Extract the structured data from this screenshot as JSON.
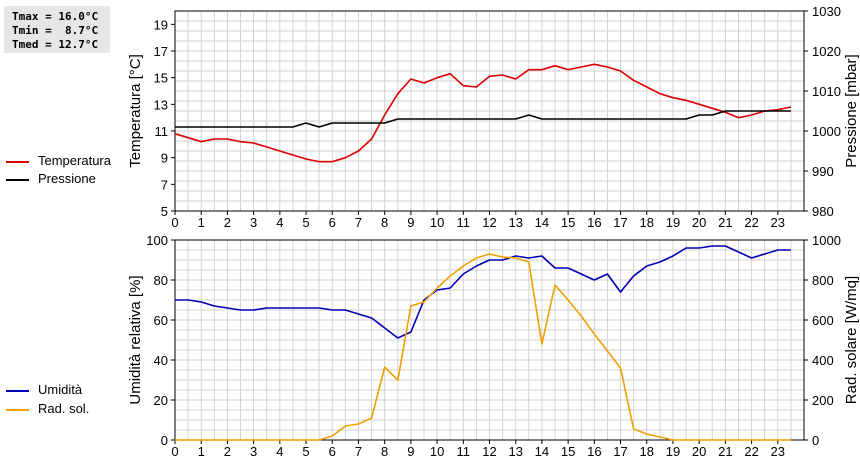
{
  "stats": {
    "tmax": "Tmax = 16.0°C",
    "tmin": "Tmin =  8.7°C",
    "tmed": "Tmed = 12.7°C"
  },
  "legend_top": [
    {
      "label": "Temperatura",
      "color": "#dd0000"
    },
    {
      "label": "Pressione",
      "color": "#000000"
    }
  ],
  "legend_bottom": [
    {
      "label": "Umidità",
      "color": "#0000b4"
    },
    {
      "label": "Rad. sol.",
      "color": "#f0a000"
    }
  ],
  "chart_data": [
    {
      "type": "line",
      "title": "",
      "xlabel": "",
      "xlim": [
        0,
        24
      ],
      "x_ticks": [
        "0",
        "1",
        "2",
        "3",
        "4",
        "5",
        "6",
        "7",
        "8",
        "9",
        "10",
        "11",
        "12",
        "13",
        "14",
        "15",
        "16",
        "17",
        "18",
        "19",
        "20",
        "21",
        "22",
        "23"
      ],
      "ylabel": "Temperatura [°C]",
      "ylim": [
        5,
        20
      ],
      "y_ticks": [
        "5",
        "7",
        "9",
        "11",
        "13",
        "15",
        "17",
        "19"
      ],
      "y2label": "Pressione [mbar]",
      "y2lim": [
        980,
        1030
      ],
      "y2_ticks": [
        "980",
        "990",
        "1000",
        "1010",
        "1020",
        "1030"
      ],
      "grid": true,
      "series": [
        {
          "name": "Temperatura",
          "axis": "left",
          "color": "#dd0000",
          "x": [
            0,
            0.5,
            1,
            1.5,
            2,
            2.5,
            3,
            3.5,
            4,
            4.5,
            5,
            5.5,
            6,
            6.5,
            7,
            7.5,
            8,
            8.5,
            9,
            9.5,
            10,
            10.5,
            11,
            11.5,
            12,
            12.5,
            13,
            13.5,
            14,
            14.5,
            15,
            15.5,
            16,
            16.5,
            17,
            17.5,
            18,
            18.5,
            19,
            19.5,
            20,
            20.5,
            21,
            21.5,
            22,
            22.5,
            23,
            23.5
          ],
          "y": [
            10.8,
            10.5,
            10.2,
            10.4,
            10.4,
            10.2,
            10.1,
            9.8,
            9.5,
            9.2,
            8.9,
            8.7,
            8.7,
            9.0,
            9.5,
            10.4,
            12.2,
            13.8,
            14.9,
            14.6,
            15.0,
            15.3,
            14.4,
            14.3,
            15.1,
            15.2,
            14.9,
            15.6,
            15.6,
            15.9,
            15.6,
            15.8,
            16.0,
            15.8,
            15.5,
            14.8,
            14.3,
            13.8,
            13.5,
            13.3,
            13.0,
            12.7,
            12.4,
            12.0,
            12.2,
            12.5,
            12.6,
            12.8
          ]
        },
        {
          "name": "Pressione",
          "axis": "right",
          "color": "#000000",
          "x": [
            0,
            0.5,
            1,
            1.5,
            2,
            2.5,
            3,
            3.5,
            4,
            4.5,
            5,
            5.5,
            6,
            6.5,
            7,
            7.5,
            8,
            8.5,
            9,
            9.5,
            10,
            10.5,
            11,
            11.5,
            12,
            12.5,
            13,
            13.5,
            14,
            14.5,
            15,
            15.5,
            16,
            16.5,
            17,
            17.5,
            18,
            18.5,
            19,
            19.5,
            20,
            20.5,
            21,
            21.5,
            22,
            22.5,
            23,
            23.5
          ],
          "y": [
            1001,
            1001,
            1001,
            1001,
            1001,
            1001,
            1001,
            1001,
            1001,
            1001,
            1002,
            1001,
            1002,
            1002,
            1002,
            1002,
            1002,
            1003,
            1003,
            1003,
            1003,
            1003,
            1003,
            1003,
            1003,
            1003,
            1003,
            1004,
            1003,
            1003,
            1003,
            1003,
            1003,
            1003,
            1003,
            1003,
            1003,
            1003,
            1003,
            1003,
            1004,
            1004,
            1005,
            1005,
            1005,
            1005,
            1005,
            1005
          ]
        }
      ]
    },
    {
      "type": "line",
      "title": "",
      "xlabel": "",
      "xlim": [
        0,
        24
      ],
      "x_ticks": [
        "0",
        "1",
        "2",
        "3",
        "4",
        "5",
        "6",
        "7",
        "8",
        "9",
        "10",
        "11",
        "12",
        "13",
        "14",
        "15",
        "16",
        "17",
        "18",
        "19",
        "20",
        "21",
        "22",
        "23"
      ],
      "ylabel": "Umidità relativa [%]",
      "ylim": [
        0,
        100
      ],
      "y_ticks": [
        "0",
        "20",
        "40",
        "60",
        "80",
        "100"
      ],
      "y2label": "Rad. solare [W/mq]",
      "y2lim": [
        0,
        1000
      ],
      "y2_ticks": [
        "0",
        "200",
        "400",
        "600",
        "800",
        "1000"
      ],
      "grid": true,
      "series": [
        {
          "name": "Umidità",
          "axis": "left",
          "color": "#0000b4",
          "x": [
            0,
            0.5,
            1,
            1.5,
            2,
            2.5,
            3,
            3.5,
            4,
            4.5,
            5,
            5.5,
            6,
            6.5,
            7,
            7.5,
            8,
            8.5,
            9,
            9.5,
            10,
            10.5,
            11,
            11.5,
            12,
            12.5,
            13,
            13.5,
            14,
            14.5,
            15,
            15.5,
            16,
            16.5,
            17,
            17.5,
            18,
            18.5,
            19,
            19.5,
            20,
            20.5,
            21,
            21.5,
            22,
            22.5,
            23,
            23.5
          ],
          "y": [
            70,
            70,
            69,
            67,
            66,
            65,
            65,
            66,
            66,
            66,
            66,
            66,
            65,
            65,
            63,
            61,
            56,
            51,
            54,
            70,
            75,
            76,
            83,
            87,
            90,
            90,
            92,
            91,
            92,
            86,
            86,
            83,
            80,
            83,
            74,
            82,
            87,
            89,
            92,
            96,
            96,
            97,
            97,
            94,
            91,
            93,
            95,
            95
          ]
        },
        {
          "name": "Rad. sol.",
          "axis": "right",
          "color": "#f0a000",
          "x": [
            0,
            0.5,
            1,
            1.5,
            2,
            2.5,
            3,
            3.5,
            4,
            4.5,
            5,
            5.5,
            6,
            6.5,
            7,
            7.5,
            8,
            8.5,
            9,
            9.5,
            10,
            10.5,
            11,
            11.5,
            12,
            12.5,
            13,
            13.5,
            14,
            14.5,
            15,
            15.5,
            16,
            16.5,
            17,
            17.5,
            18,
            18.5,
            19,
            19.5,
            20,
            20.5,
            21,
            21.5,
            22,
            22.5,
            23,
            23.5
          ],
          "y": [
            0,
            0,
            0,
            0,
            0,
            0,
            0,
            0,
            0,
            0,
            0,
            0,
            20,
            70,
            80,
            110,
            365,
            300,
            670,
            690,
            760,
            820,
            870,
            910,
            930,
            915,
            910,
            890,
            480,
            775,
            700,
            620,
            530,
            445,
            360,
            55,
            30,
            15,
            0,
            0,
            0,
            0,
            0,
            0,
            0,
            0,
            0,
            0
          ]
        }
      ]
    }
  ]
}
